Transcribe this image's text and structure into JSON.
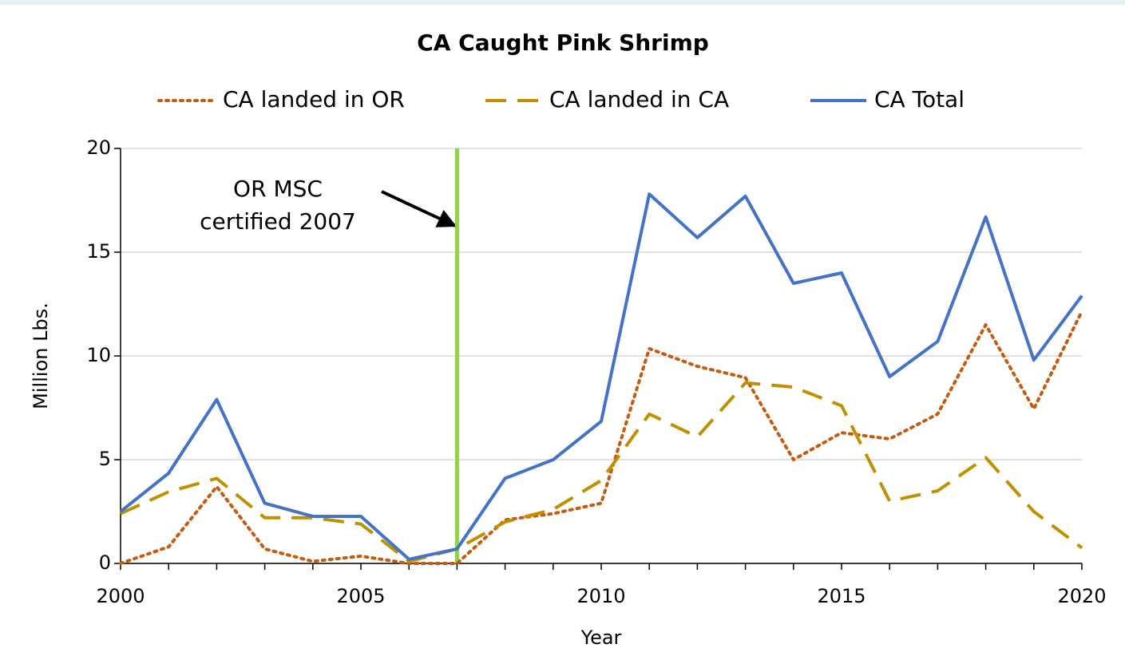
{
  "chart_data": {
    "type": "line",
    "title": "CA Caught Pink Shrimp",
    "xlabel": "Year",
    "ylabel": "Million Lbs.",
    "x": [
      2000,
      2001,
      2002,
      2003,
      2004,
      2005,
      2006,
      2007,
      2008,
      2009,
      2010,
      2011,
      2012,
      2013,
      2014,
      2015,
      2016,
      2017,
      2018,
      2019,
      2020
    ],
    "series": [
      {
        "name": "CA landed in OR",
        "color": "#c55a11",
        "style": "dotted",
        "values": [
          0,
          0.8,
          3.7,
          0.7,
          0.1,
          0.35,
          0,
          0,
          2.1,
          2.4,
          2.9,
          10.35,
          9.5,
          8.95,
          5.0,
          6.3,
          6.0,
          7.2,
          11.5,
          7.45,
          12.15
        ]
      },
      {
        "name": "CA landed in CA",
        "color": "#bf9000",
        "style": "dashed",
        "values": [
          2.4,
          3.45,
          4.1,
          2.2,
          2.2,
          1.9,
          0.1,
          0.7,
          2.0,
          2.6,
          4.0,
          7.2,
          6.1,
          8.7,
          8.5,
          7.6,
          3.0,
          3.5,
          5.1,
          2.5,
          0.75
        ]
      },
      {
        "name": "CA Total",
        "color": "#4472c4",
        "style": "solid",
        "values": [
          2.5,
          4.35,
          7.9,
          2.9,
          2.27,
          2.27,
          0.2,
          0.7,
          4.1,
          5.0,
          6.85,
          17.8,
          15.7,
          17.7,
          13.5,
          14.0,
          9.0,
          10.7,
          16.7,
          9.8,
          12.9
        ]
      }
    ],
    "xlim": [
      2000,
      2020
    ],
    "xticks": [
      2000,
      2005,
      2010,
      2015,
      2020
    ],
    "xminorticks": [
      2000,
      2001,
      2002,
      2003,
      2004,
      2005,
      2006,
      2007,
      2008,
      2009,
      2010,
      2011,
      2012,
      2013,
      2014,
      2015,
      2016,
      2017,
      2018,
      2019,
      2020
    ],
    "ylim": [
      0,
      20
    ],
    "yticks": [
      0,
      5,
      10,
      15,
      20
    ],
    "grid": true,
    "legend": "top",
    "annotations": [
      {
        "lines": [
          "OR MSC",
          "certified 2007"
        ],
        "x": 2007,
        "color": "#92d050"
      }
    ]
  }
}
